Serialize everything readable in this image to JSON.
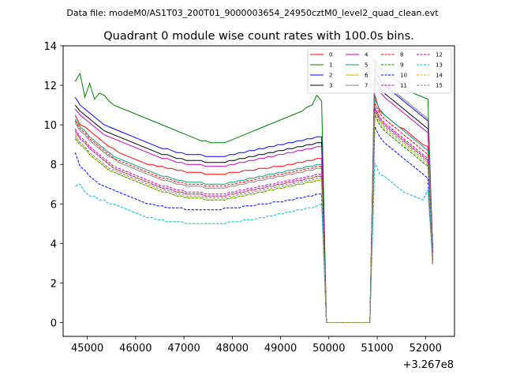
{
  "chart_data": {
    "type": "line",
    "suptitle": "Data file: modeM0/AS1T03_200T01_9000003654_24950cztM0_level2_quad_clean.evt",
    "title": "Quadrant 0 module wise count rates with 100.0s bins.",
    "xlabel": "",
    "ylabel": "",
    "x_offset_label": "+3.267e8",
    "xlim": [
      44500,
      52600
    ],
    "ylim": [
      -0.7,
      14
    ],
    "x_ticks": [
      45000,
      46000,
      47000,
      48000,
      49000,
      50000,
      51000,
      52000
    ],
    "x_tick_labels": [
      "45000",
      "46000",
      "47000",
      "48000",
      "49000",
      "50000",
      "51000",
      "52000"
    ],
    "y_ticks": [
      0,
      2,
      4,
      6,
      8,
      10,
      12,
      14
    ],
    "y_tick_labels": [
      "0",
      "2",
      "4",
      "6",
      "8",
      "10",
      "12",
      "14"
    ],
    "legend_position": "top-right",
    "x_start": 44750,
    "x_step": 100,
    "gap_start_index": 52,
    "gap_end_index": 61,
    "series": [
      {
        "name": "0",
        "color": "#ff0000",
        "dash": "solid",
        "first_segment": [
          10.5,
          10,
          9.9,
          9.7,
          9.5,
          9.3,
          9.1,
          8.9,
          8.8,
          8.6,
          8.5,
          8.4,
          8.3,
          8.2,
          8.1,
          8,
          8,
          7.9,
          7.9,
          7.8,
          7.8,
          7.7,
          7.7,
          7.6,
          7.6,
          7.6,
          7.6,
          7.5,
          7.5,
          7.5,
          7.5,
          7.5,
          7.6,
          7.6,
          7.6,
          7.7,
          7.7,
          7.7,
          7.8,
          7.8,
          7.8,
          7.9,
          7.9,
          7.9,
          8,
          8,
          8.1,
          8.1,
          8.2,
          8.2,
          8.3,
          8.3
        ],
        "second_segment": [
          11.5,
          10.7,
          10.5,
          10.3,
          10.1,
          9.9,
          9.8,
          9.6,
          9.4,
          9.2,
          9,
          8.9,
          3.2
        ]
      },
      {
        "name": "1",
        "color": "#008000",
        "dash": "solid",
        "first_segment": [
          12.2,
          12.6,
          11.4,
          12.1,
          11.3,
          11.6,
          11.5,
          11.2,
          11,
          10.9,
          10.8,
          10.7,
          10.6,
          10.5,
          10.4,
          10.3,
          10.2,
          10.1,
          10,
          9.9,
          9.8,
          9.7,
          9.6,
          9.5,
          9.4,
          9.3,
          9.2,
          9.2,
          9.1,
          9.1,
          9.1,
          9.1,
          9.2,
          9.3,
          9.4,
          9.5,
          9.6,
          9.7,
          9.8,
          9.9,
          10,
          10.1,
          10.2,
          10.3,
          10.4,
          10.5,
          10.6,
          10.7,
          10.9,
          11,
          11.5,
          11.2
        ],
        "second_segment": [
          13.3,
          12.9,
          12.7,
          12.5,
          12.3,
          12.1,
          11.9,
          11.7,
          11.6,
          11.5,
          11.4,
          11.3,
          3.5
        ]
      },
      {
        "name": "2",
        "color": "#0000ff",
        "dash": "solid",
        "first_segment": [
          11.4,
          11,
          10.8,
          10.6,
          10.4,
          10.2,
          10,
          9.9,
          9.8,
          9.7,
          9.6,
          9.5,
          9.4,
          9.3,
          9.2,
          9.1,
          9,
          8.9,
          8.8,
          8.8,
          8.7,
          8.6,
          8.6,
          8.5,
          8.5,
          8.5,
          8.5,
          8.4,
          8.4,
          8.4,
          8.4,
          8.4,
          8.5,
          8.5,
          8.6,
          8.6,
          8.7,
          8.7,
          8.8,
          8.8,
          8.9,
          8.9,
          9,
          9,
          9.1,
          9.1,
          9.2,
          9.2,
          9.3,
          9.3,
          9.4,
          9.4
        ],
        "second_segment": [
          12.8,
          12.3,
          12,
          11.8,
          11.6,
          11.4,
          11.2,
          11,
          10.8,
          10.6,
          10.4,
          10.2,
          3.8
        ]
      },
      {
        "name": "3",
        "color": "#000000",
        "dash": "solid",
        "first_segment": [
          11,
          10.7,
          10.5,
          10.3,
          10.1,
          9.9,
          9.7,
          9.6,
          9.5,
          9.4,
          9.3,
          9.2,
          9.1,
          9,
          8.9,
          8.8,
          8.7,
          8.6,
          8.5,
          8.5,
          8.4,
          8.3,
          8.3,
          8.2,
          8.2,
          8.2,
          8.2,
          8.1,
          8.1,
          8.1,
          8.1,
          8.1,
          8.2,
          8.2,
          8.3,
          8.3,
          8.4,
          8.4,
          8.5,
          8.5,
          8.6,
          8.6,
          8.7,
          8.7,
          8.8,
          8.8,
          8.9,
          8.9,
          9,
          9,
          9.1,
          9.1
        ],
        "second_segment": [
          12.4,
          11.9,
          11.6,
          11.4,
          11.2,
          11,
          10.8,
          10.6,
          10.4,
          10.2,
          10,
          9.8,
          3.6
        ]
      },
      {
        "name": "4",
        "color": "#bf00bf",
        "dash": "solid",
        "first_segment": [
          10.8,
          10.5,
          10.3,
          10.1,
          9.9,
          9.7,
          9.5,
          9.4,
          9.3,
          9.2,
          9.1,
          9,
          8.9,
          8.8,
          8.7,
          8.6,
          8.5,
          8.4,
          8.3,
          8.3,
          8.2,
          8.1,
          8.1,
          8,
          8,
          8,
          8,
          7.9,
          7.9,
          7.9,
          7.9,
          7.9,
          8,
          8,
          8.1,
          8.1,
          8.2,
          8.2,
          8.3,
          8.3,
          8.4,
          8.4,
          8.5,
          8.5,
          8.6,
          8.6,
          8.7,
          8.7,
          8.8,
          8.8,
          8.9,
          8.9
        ],
        "second_segment": [
          12.2,
          11.7,
          11.4,
          11.2,
          11,
          10.8,
          10.6,
          10.4,
          10.2,
          10,
          9.8,
          9.6,
          3.5
        ]
      },
      {
        "name": "5",
        "color": "#00a080",
        "dash": "solid",
        "first_segment": [
          10.3,
          9.9,
          9.7,
          9.4,
          9.2,
          9,
          8.8,
          8.6,
          8.4,
          8.3,
          8.2,
          8.1,
          8,
          7.9,
          7.8,
          7.7,
          7.6,
          7.5,
          7.4,
          7.4,
          7.3,
          7.2,
          7.2,
          7.1,
          7.1,
          7.1,
          7.1,
          7,
          7,
          7,
          7,
          7,
          7.1,
          7.1,
          7.2,
          7.2,
          7.3,
          7.3,
          7.4,
          7.4,
          7.5,
          7.5,
          7.6,
          7.6,
          7.7,
          7.7,
          7.8,
          7.8,
          7.9,
          7.9,
          8,
          8
        ],
        "second_segment": [
          11.3,
          10.8,
          10.5,
          10.3,
          10.1,
          9.9,
          9.7,
          9.5,
          9.3,
          9.1,
          8.9,
          8.7,
          3.1
        ]
      },
      {
        "name": "6",
        "color": "#bfbf00",
        "dash": "solid",
        "first_segment": [
          9.6,
          9.3,
          9.1,
          8.8,
          8.6,
          8.4,
          8.2,
          8,
          7.8,
          7.7,
          7.6,
          7.5,
          7.4,
          7.3,
          7.2,
          7.1,
          7,
          6.9,
          6.8,
          6.8,
          6.7,
          6.6,
          6.6,
          6.5,
          6.5,
          6.5,
          6.5,
          6.4,
          6.4,
          6.4,
          6.4,
          6.4,
          6.5,
          6.5,
          6.6,
          6.6,
          6.7,
          6.7,
          6.8,
          6.8,
          6.9,
          6.9,
          7,
          7,
          7.1,
          7.1,
          7.2,
          7.2,
          7.3,
          7.3,
          7.4,
          7.4
        ],
        "second_segment": [
          10.8,
          10.3,
          10,
          9.8,
          9.6,
          9.4,
          9.2,
          9,
          8.8,
          8.6,
          8.4,
          8.2,
          3
        ]
      },
      {
        "name": "7",
        "color": "#808080",
        "dash": "solid",
        "first_segment": [
          10.1,
          9.7,
          9.5,
          9.2,
          9,
          8.8,
          8.6,
          8.4,
          8.3,
          8.1,
          8,
          7.9,
          7.8,
          7.7,
          7.6,
          7.5,
          7.4,
          7.3,
          7.2,
          7.2,
          7.1,
          7,
          7,
          6.9,
          6.9,
          6.9,
          6.9,
          6.8,
          6.8,
          6.8,
          6.8,
          6.8,
          6.9,
          6.9,
          7,
          7,
          7.1,
          7.1,
          7.2,
          7.2,
          7.3,
          7.3,
          7.4,
          7.4,
          7.5,
          7.5,
          7.6,
          7.6,
          7.7,
          7.7,
          7.8,
          7.8
        ],
        "second_segment": [
          13.1,
          12.5,
          12.2,
          11.9,
          11.7,
          11.5,
          11.3,
          11.1,
          10.9,
          10.7,
          10.5,
          10.3,
          3.4
        ]
      },
      {
        "name": "8",
        "color": "#ff0000",
        "dash": "dashed",
        "first_segment": [
          10.2,
          9.8,
          9.6,
          9.3,
          9.1,
          8.9,
          8.7,
          8.5,
          8.3,
          8.2,
          8.1,
          8,
          7.9,
          7.8,
          7.7,
          7.6,
          7.5,
          7.4,
          7.3,
          7.3,
          7.2,
          7.1,
          7.1,
          7,
          7,
          7,
          7,
          6.9,
          6.9,
          6.9,
          6.9,
          6.9,
          7,
          7,
          7.1,
          7.1,
          7.2,
          7.2,
          7.3,
          7.3,
          7.4,
          7.4,
          7.5,
          7.5,
          7.6,
          7.6,
          7.7,
          7.7,
          7.8,
          7.8,
          7.9,
          7.9
        ],
        "second_segment": [
          11.1,
          10.6,
          10.3,
          10.1,
          9.9,
          9.7,
          9.5,
          9.3,
          9.1,
          8.9,
          8.7,
          8.5,
          3.1
        ]
      },
      {
        "name": "9",
        "color": "#008000",
        "dash": "dashed",
        "first_segment": [
          9.3,
          9,
          8.8,
          8.5,
          8.3,
          8.1,
          7.9,
          7.7,
          7.6,
          7.5,
          7.4,
          7.3,
          7.2,
          7.1,
          7,
          6.9,
          6.8,
          6.7,
          6.6,
          6.6,
          6.5,
          6.4,
          6.4,
          6.3,
          6.3,
          6.3,
          6.3,
          6.2,
          6.2,
          6.2,
          6.2,
          6.2,
          6.3,
          6.3,
          6.4,
          6.4,
          6.5,
          6.5,
          6.6,
          6.6,
          6.7,
          6.7,
          6.8,
          6.8,
          6.9,
          6.9,
          7,
          7,
          7.1,
          7.1,
          7.2,
          7.2
        ],
        "second_segment": [
          10.5,
          10,
          9.7,
          9.5,
          9.3,
          9.1,
          8.9,
          8.7,
          8.5,
          8.3,
          8.1,
          7.9,
          3
        ]
      },
      {
        "name": "10",
        "color": "#0000ff",
        "dash": "dashed",
        "first_segment": [
          8.6,
          7.9,
          7.7,
          7.4,
          7.2,
          7,
          6.9,
          6.8,
          6.7,
          6.6,
          6.5,
          6.4,
          6.3,
          6.2,
          6.1,
          6,
          6,
          5.9,
          5.9,
          5.8,
          5.8,
          5.8,
          5.8,
          5.7,
          5.7,
          5.7,
          5.7,
          5.7,
          5.7,
          5.7,
          5.7,
          5.8,
          5.8,
          5.8,
          5.8,
          5.9,
          5.9,
          5.9,
          6,
          6,
          6,
          6.1,
          6.1,
          6.1,
          6.2,
          6.2,
          6.3,
          6.3,
          6.4,
          6.4,
          6.5,
          6.5
        ],
        "second_segment": [
          9.9,
          9.4,
          9.1,
          8.9,
          8.7,
          8.5,
          8.3,
          8.1,
          7.9,
          7.7,
          7.5,
          7.3,
          2.9
        ]
      },
      {
        "name": "11",
        "color": "#bf00bf",
        "dash": "dashed",
        "first_segment": [
          9.8,
          9.4,
          9.2,
          8.9,
          8.7,
          8.5,
          8.3,
          8.1,
          7.9,
          7.8,
          7.7,
          7.6,
          7.5,
          7.4,
          7.3,
          7.2,
          7.1,
          7,
          6.9,
          6.9,
          6.8,
          6.7,
          6.7,
          6.6,
          6.6,
          6.6,
          6.6,
          6.5,
          6.5,
          6.5,
          6.5,
          6.5,
          6.6,
          6.6,
          6.7,
          6.7,
          6.8,
          6.8,
          6.9,
          6.9,
          7,
          7,
          7.1,
          7.1,
          7.2,
          7.2,
          7.3,
          7.3,
          7.4,
          7.4,
          7.5,
          7.5
        ],
        "second_segment": [
          10.9,
          10.4,
          10.1,
          9.9,
          9.7,
          9.5,
          9.3,
          9.1,
          8.9,
          8.7,
          8.5,
          8.3,
          3
        ]
      },
      {
        "name": "12",
        "color": "#bf00bf",
        "dash": "dashed",
        "first_segment": [
          9.7,
          9.3,
          9.1,
          8.8,
          8.6,
          8.4,
          8.2,
          8,
          7.8,
          7.7,
          7.6,
          7.5,
          7.4,
          7.3,
          7.2,
          7.1,
          7,
          6.9,
          6.8,
          6.8,
          6.7,
          6.6,
          6.6,
          6.5,
          6.5,
          6.5,
          6.5,
          6.4,
          6.4,
          6.4,
          6.4,
          6.4,
          6.5,
          6.5,
          6.6,
          6.6,
          6.7,
          6.7,
          6.8,
          6.8,
          6.9,
          6.9,
          7,
          7,
          7.1,
          7.1,
          7.2,
          7.2,
          7.3,
          7.3,
          7.4,
          7.4
        ],
        "second_segment": [
          10.8,
          10.3,
          10,
          9.8,
          9.6,
          9.4,
          9.2,
          9,
          8.8,
          8.6,
          8.4,
          8.2,
          3
        ]
      },
      {
        "name": "13",
        "color": "#00bfbf",
        "dash": "dashed",
        "first_segment": [
          6.9,
          7,
          6.6,
          6.4,
          6.4,
          6.2,
          6.2,
          6,
          6,
          5.9,
          5.8,
          5.7,
          5.6,
          5.5,
          5.4,
          5.3,
          5.3,
          5.2,
          5.2,
          5.1,
          5.1,
          5.1,
          5.1,
          5,
          5,
          5,
          5,
          5,
          5,
          5,
          5,
          5,
          5.1,
          5.1,
          5.1,
          5.2,
          5.2,
          5.2,
          5.3,
          5.3,
          5.4,
          5.4,
          5.5,
          5.5,
          5.6,
          5.6,
          5.7,
          5.7,
          5.8,
          5.8,
          5.9,
          6
        ],
        "second_segment": [
          8.1,
          7.5,
          7.4,
          7.2,
          7,
          6.8,
          6.6,
          6.5,
          6.4,
          6.3,
          6.2,
          6.7,
          3
        ]
      },
      {
        "name": "14",
        "color": "#bfbf00",
        "dash": "dashed",
        "first_segment": [
          9.4,
          9,
          8.8,
          8.5,
          8.3,
          8.1,
          7.9,
          7.7,
          7.6,
          7.5,
          7.4,
          7.3,
          7.2,
          7.1,
          7,
          6.9,
          6.8,
          6.7,
          6.6,
          6.6,
          6.5,
          6.4,
          6.4,
          6.3,
          6.3,
          6.3,
          6.3,
          6.2,
          6.2,
          6.2,
          6.2,
          6.2,
          6.3,
          6.3,
          6.4,
          6.4,
          6.5,
          6.5,
          6.6,
          6.6,
          6.7,
          6.7,
          6.8,
          6.8,
          6.9,
          6.9,
          7,
          7,
          7.1,
          7.1,
          7.2,
          7.2
        ],
        "second_segment": [
          10.6,
          10.1,
          9.8,
          9.6,
          9.4,
          9.2,
          9,
          8.8,
          8.6,
          8.4,
          8.2,
          8,
          3
        ]
      },
      {
        "name": "15",
        "color": "#808080",
        "dash": "dashed",
        "first_segment": [
          9.5,
          9.1,
          8.9,
          8.6,
          8.4,
          8.2,
          8,
          7.8,
          7.7,
          7.6,
          7.5,
          7.4,
          7.3,
          7.2,
          7.1,
          7,
          6.9,
          6.8,
          6.7,
          6.7,
          6.6,
          6.5,
          6.5,
          6.4,
          6.4,
          6.4,
          6.4,
          6.3,
          6.3,
          6.3,
          6.3,
          6.3,
          6.4,
          6.4,
          6.5,
          6.5,
          6.6,
          6.6,
          6.7,
          6.7,
          6.8,
          6.8,
          6.9,
          6.9,
          7,
          7,
          7.1,
          7.1,
          7.2,
          7.2,
          7.3,
          7.3
        ],
        "second_segment": [
          10.7,
          10.2,
          9.9,
          9.7,
          9.5,
          9.3,
          9.1,
          8.9,
          8.7,
          8.5,
          8.3,
          8.1,
          3
        ]
      }
    ]
  }
}
